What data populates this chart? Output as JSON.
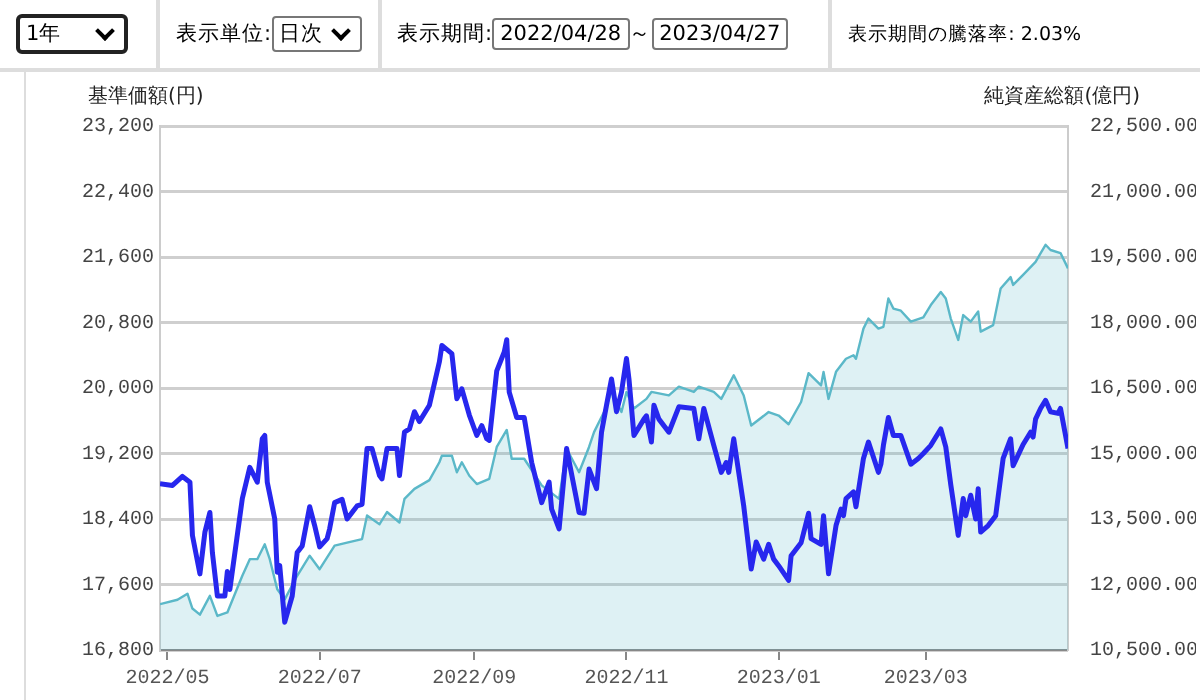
{
  "chart_data": {
    "type": "line",
    "ylabel": "基準価額(円)",
    "y2label": "純資産総額(億円)",
    "annotations": [
      "1年",
      "表示単位:",
      "日次",
      "表示期間:",
      "2022/04/28",
      "～",
      "2023/04/27",
      "表示期間の騰落率: 2.03%"
    ],
    "grid": "y",
    "marker": "none",
    "line_style": "solid",
    "xlim": [
      "2022-04-28",
      "2023-04-27"
    ],
    "xticks": [
      {
        "value": "2022-05-01",
        "label": "2022/05"
      },
      {
        "value": "2022-07-01",
        "label": "2022/07"
      },
      {
        "value": "2022-09-01",
        "label": "2022/09"
      },
      {
        "value": "2022-11-01",
        "label": "2022/11"
      },
      {
        "value": "2023-01-01",
        "label": "2023/01"
      },
      {
        "value": "2023-03-01",
        "label": "2023/03"
      }
    ],
    "ylim": [
      16800,
      23200
    ],
    "yticks": [
      {
        "value": 16800,
        "label": "16,800"
      },
      {
        "value": 17600,
        "label": "17,600"
      },
      {
        "value": 18400,
        "label": "18,400"
      },
      {
        "value": 19200,
        "label": "19,200"
      },
      {
        "value": 20000,
        "label": "20,000"
      },
      {
        "value": 20800,
        "label": "20,800"
      },
      {
        "value": 21600,
        "label": "21,600"
      },
      {
        "value": 22400,
        "label": "22,400"
      },
      {
        "value": 23200,
        "label": "23,200"
      }
    ],
    "y2lim": [
      10500,
      22500
    ],
    "y2ticks": [
      {
        "value": 10500,
        "label": "10,500.00"
      },
      {
        "value": 12000,
        "label": "12,000.00"
      },
      {
        "value": 13500,
        "label": "13,500.00"
      },
      {
        "value": 15000,
        "label": "15,000.00"
      },
      {
        "value": 16500,
        "label": "16,500.00"
      },
      {
        "value": 18000,
        "label": "18,000.00"
      },
      {
        "value": 19500,
        "label": "19,500.00"
      },
      {
        "value": 21000,
        "label": "21,000.00"
      },
      {
        "value": 22500,
        "label": "22,500.00"
      }
    ],
    "series": [
      {
        "type": "line",
        "color": "#2727ee",
        "x": [
          "2022-04-28",
          "2022-05-03",
          "2022-05-07",
          "2022-05-10",
          "2022-05-11",
          "2022-05-14",
          "2022-05-16",
          "2022-05-18",
          "2022-05-19",
          "2022-05-21",
          "2022-05-24",
          "2022-05-25",
          "2022-05-26",
          "2022-05-31",
          "2022-06-03",
          "2022-06-06",
          "2022-06-08",
          "2022-06-09",
          "2022-06-10",
          "2022-06-13",
          "2022-06-14",
          "2022-06-15",
          "2022-06-17",
          "2022-06-20",
          "2022-06-22",
          "2022-06-24",
          "2022-06-27",
          "2022-06-29",
          "2022-07-01",
          "2022-07-04",
          "2022-07-05",
          "2022-07-07",
          "2022-07-10",
          "2022-07-12",
          "2022-07-16",
          "2022-07-18",
          "2022-07-20",
          "2022-07-22",
          "2022-07-25",
          "2022-07-26",
          "2022-07-28",
          "2022-08-01",
          "2022-08-02",
          "2022-08-04",
          "2022-08-06",
          "2022-08-08",
          "2022-08-10",
          "2022-08-14",
          "2022-08-18",
          "2022-08-19",
          "2022-08-23",
          "2022-08-25",
          "2022-08-27",
          "2022-08-30",
          "2022-09-02",
          "2022-09-04",
          "2022-09-06",
          "2022-09-07",
          "2022-09-10",
          "2022-09-13",
          "2022-09-14",
          "2022-09-15",
          "2022-09-18",
          "2022-09-21",
          "2022-09-24",
          "2022-09-28",
          "2022-10-01",
          "2022-10-02",
          "2022-10-05",
          "2022-10-08",
          "2022-10-13",
          "2022-10-15",
          "2022-10-17",
          "2022-10-20",
          "2022-10-22",
          "2022-10-24",
          "2022-10-26",
          "2022-10-28",
          "2022-10-30",
          "2022-11-01",
          "2022-11-02",
          "2022-11-04",
          "2022-11-08",
          "2022-11-09",
          "2022-11-11",
          "2022-11-12",
          "2022-11-14",
          "2022-11-18",
          "2022-11-22",
          "2022-11-28",
          "2022-11-30",
          "2022-12-02",
          "2022-12-06",
          "2022-12-09",
          "2022-12-11",
          "2022-12-12",
          "2022-12-14",
          "2022-12-18",
          "2022-12-21",
          "2022-12-23",
          "2022-12-26",
          "2022-12-28",
          "2022-12-30",
          "2023-01-01",
          "2023-01-05",
          "2023-01-06",
          "2023-01-10",
          "2023-01-13",
          "2023-01-14",
          "2023-01-18",
          "2023-01-19",
          "2023-01-21",
          "2023-01-24",
          "2023-01-26",
          "2023-01-27",
          "2023-01-28",
          "2023-01-31",
          "2023-02-01",
          "2023-02-04",
          "2023-02-06",
          "2023-02-10",
          "2023-02-11",
          "2023-02-12",
          "2023-02-14",
          "2023-02-16",
          "2023-02-19",
          "2023-02-23",
          "2023-02-26",
          "2023-02-28",
          "2023-03-03",
          "2023-03-07",
          "2023-03-09",
          "2023-03-11",
          "2023-03-14",
          "2023-03-16",
          "2023-03-17",
          "2023-03-19",
          "2023-03-21",
          "2023-03-22",
          "2023-03-23",
          "2023-03-26",
          "2023-03-29",
          "2023-04-01",
          "2023-04-04",
          "2023-04-05",
          "2023-04-09",
          "2023-04-12",
          "2023-04-13",
          "2023-04-14",
          "2023-04-16",
          "2023-04-18",
          "2023-04-20",
          "2023-04-23",
          "2023-04-24",
          "2023-04-27"
        ],
        "values": [
          18830,
          18810,
          18920,
          18850,
          18200,
          17730,
          18240,
          18480,
          17990,
          17460,
          17460,
          17760,
          17540,
          18650,
          19030,
          18850,
          19380,
          19420,
          18850,
          18400,
          17750,
          17830,
          17140,
          17460,
          17990,
          18070,
          18550,
          18320,
          18060,
          18160,
          18280,
          18600,
          18640,
          18400,
          18560,
          18580,
          19260,
          19260,
          18930,
          18890,
          19260,
          19260,
          18930,
          19460,
          19500,
          19710,
          19590,
          19790,
          20320,
          20520,
          20420,
          19870,
          19990,
          19670,
          19420,
          19540,
          19380,
          19360,
          20210,
          20440,
          20590,
          19950,
          19640,
          19640,
          19090,
          18600,
          18850,
          18520,
          18280,
          19260,
          18480,
          18470,
          19010,
          18770,
          19460,
          19790,
          20110,
          19710,
          19950,
          20360,
          20110,
          19420,
          19620,
          19660,
          19340,
          19790,
          19620,
          19460,
          19770,
          19750,
          19380,
          19750,
          19300,
          18970,
          19090,
          18970,
          19380,
          18560,
          17790,
          18120,
          17910,
          18090,
          17910,
          17830,
          17650,
          17950,
          18110,
          18470,
          18160,
          18090,
          18440,
          17730,
          18320,
          18520,
          18440,
          18650,
          18730,
          18550,
          19140,
          19340,
          18970,
          19070,
          19300,
          19640,
          19420,
          19420,
          19070,
          19140,
          19200,
          19300,
          19500,
          19280,
          18820,
          18200,
          18650,
          18440,
          18690,
          18400,
          18770,
          18240,
          18320,
          18440,
          19140,
          19380,
          19050,
          19310,
          19460,
          19400,
          19620,
          19750,
          19850,
          19710,
          19690,
          19750,
          19260
        ]
      },
      {
        "type": "area",
        "axis": "y2",
        "color": "#5bb8c8",
        "x": [
          "2022-04-28",
          "2022-05-05",
          "2022-05-09",
          "2022-05-11",
          "2022-05-14",
          "2022-05-18",
          "2022-05-21",
          "2022-05-25",
          "2022-05-31",
          "2022-06-03",
          "2022-06-06",
          "2022-06-09",
          "2022-06-11",
          "2022-06-14",
          "2022-06-17",
          "2022-06-22",
          "2022-06-27",
          "2022-07-01",
          "2022-07-07",
          "2022-07-12",
          "2022-07-18",
          "2022-07-20",
          "2022-07-25",
          "2022-07-28",
          "2022-08-02",
          "2022-08-04",
          "2022-08-08",
          "2022-08-14",
          "2022-08-18",
          "2022-08-19",
          "2022-08-23",
          "2022-08-25",
          "2022-08-27",
          "2022-08-30",
          "2022-09-02",
          "2022-09-07",
          "2022-09-10",
          "2022-09-14",
          "2022-09-16",
          "2022-09-21",
          "2022-09-28",
          "2022-10-05",
          "2022-10-08",
          "2022-10-13",
          "2022-10-17",
          "2022-10-19",
          "2022-10-23",
          "2022-10-26",
          "2022-10-30",
          "2022-11-01",
          "2022-11-04",
          "2022-11-09",
          "2022-11-11",
          "2022-11-18",
          "2022-11-22",
          "2022-11-28",
          "2022-11-30",
          "2022-12-06",
          "2022-12-09",
          "2022-12-14",
          "2022-12-18",
          "2022-12-21",
          "2022-12-28",
          "2023-01-01",
          "2023-01-05",
          "2023-01-10",
          "2023-01-13",
          "2023-01-18",
          "2023-01-19",
          "2023-01-21",
          "2023-01-24",
          "2023-01-28",
          "2023-01-31",
          "2023-02-01",
          "2023-02-04",
          "2023-02-06",
          "2023-02-10",
          "2023-02-12",
          "2023-02-14",
          "2023-02-16",
          "2023-02-19",
          "2023-02-23",
          "2023-02-28",
          "2023-03-03",
          "2023-03-07",
          "2023-03-09",
          "2023-03-11",
          "2023-03-14",
          "2023-03-16",
          "2023-03-19",
          "2023-03-22",
          "2023-03-23",
          "2023-03-28",
          "2023-03-31",
          "2023-04-04",
          "2023-04-05",
          "2023-04-09",
          "2023-04-14",
          "2023-04-18",
          "2023-04-20",
          "2023-04-24",
          "2023-04-27"
        ],
        "values": [
          11550,
          11650,
          11790,
          11450,
          11310,
          11740,
          11280,
          11360,
          12200,
          12580,
          12580,
          12920,
          12580,
          11890,
          11660,
          12200,
          12660,
          12350,
          12890,
          12960,
          13040,
          13580,
          13380,
          13660,
          13420,
          13960,
          14190,
          14390,
          14800,
          14950,
          14950,
          14570,
          14800,
          14490,
          14300,
          14420,
          15150,
          15540,
          14880,
          14880,
          14270,
          13960,
          15110,
          14570,
          15150,
          15490,
          15950,
          16410,
          15950,
          16410,
          16030,
          16250,
          16410,
          16330,
          16530,
          16410,
          16530,
          16410,
          16250,
          16790,
          16330,
          15640,
          15950,
          15870,
          15670,
          16180,
          16840,
          16560,
          16870,
          16250,
          16870,
          17170,
          17250,
          17170,
          17860,
          18090,
          17860,
          17900,
          18550,
          18320,
          18270,
          18020,
          18120,
          18400,
          18700,
          18550,
          18090,
          17600,
          18170,
          18020,
          18250,
          17790,
          17940,
          18780,
          19040,
          18860,
          19090,
          19390,
          19780,
          19660,
          19590,
          19240
        ]
      }
    ]
  }
}
